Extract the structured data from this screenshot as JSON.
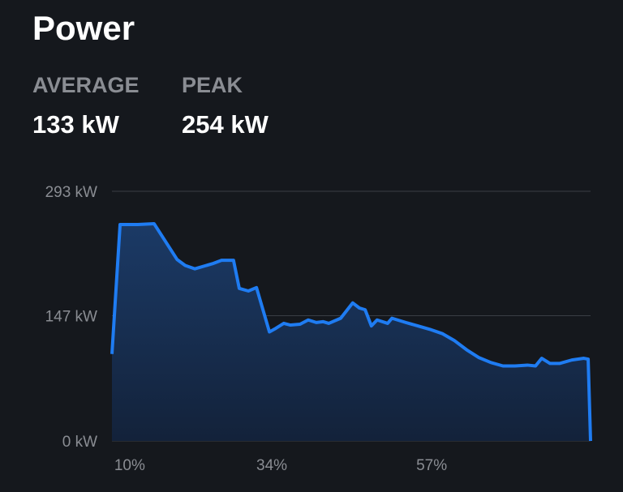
{
  "header": {
    "title": "Power"
  },
  "stats": [
    {
      "label": "AVERAGE",
      "value": "133 kW"
    },
    {
      "label": "PEAK",
      "value": "254 kW"
    }
  ],
  "chart_data": {
    "type": "area",
    "x": [
      0,
      1.7,
      5.4,
      8.8,
      13.6,
      15.3,
      17.3,
      21.0,
      22.9,
      25.4,
      26.6,
      28.5,
      30.2,
      32.9,
      34.2,
      35.9,
      37.3,
      39.3,
      41.0,
      42.7,
      44.1,
      45.3,
      47.8,
      50.3,
      51.7,
      52.9,
      54.2,
      55.4,
      57.6,
      58.5,
      61.4,
      63.9,
      66.4,
      69.0,
      71.5,
      74.1,
      76.6,
      79.2,
      81.7,
      84.2,
      86.8,
      88.5,
      89.8,
      91.5,
      93.6,
      96.1,
      98.6,
      99.5,
      100
    ],
    "series": [
      {
        "color": "#1f7cf2",
        "values": [
          102,
          254,
          254,
          255,
          213,
          206,
          202,
          208,
          212,
          212,
          179,
          176,
          180,
          128,
          132,
          138,
          136,
          137,
          142,
          139,
          140,
          138,
          144,
          162,
          156,
          154,
          135,
          142,
          138,
          144,
          139,
          135,
          131,
          126,
          118,
          107,
          98,
          92,
          88,
          88,
          89,
          88,
          97,
          91,
          91,
          95,
          97,
          96,
          0
        ]
      }
    ],
    "xlim": [
      0,
      100
    ],
    "xticks": [
      {
        "value": 3.7,
        "label": "10%"
      },
      {
        "value": 33.4,
        "label": "34%"
      },
      {
        "value": 66.8,
        "label": "57%"
      }
    ],
    "ylim": [
      0,
      293
    ],
    "yticks": [
      {
        "value": 0,
        "label": "0 kW"
      },
      {
        "value": 147,
        "label": "147 kW"
      },
      {
        "value": 293,
        "label": "293 kW"
      }
    ],
    "grid": true
  }
}
